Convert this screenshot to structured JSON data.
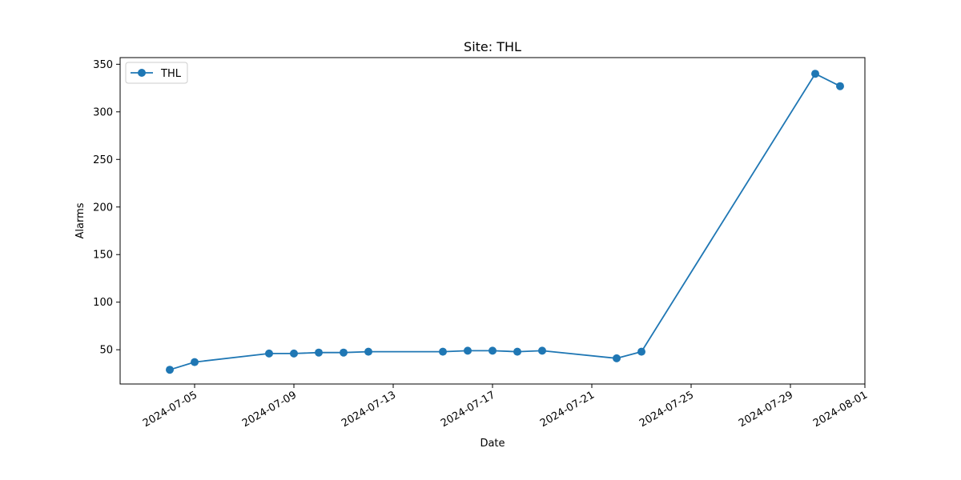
{
  "chart_data": {
    "type": "line",
    "title": "Site: THL",
    "xlabel": "Date",
    "ylabel": "Alarms",
    "x_tick_labels": [
      "2024-07-05",
      "2024-07-09",
      "2024-07-13",
      "2024-07-17",
      "2024-07-21",
      "2024-07-25",
      "2024-07-29",
      "2024-08-01"
    ],
    "y_tick_labels": [
      "50",
      "100",
      "150",
      "200",
      "250",
      "300",
      "350"
    ],
    "ylim": [
      14,
      357
    ],
    "xlim": [
      "2024-07-02",
      "2024-08-01"
    ],
    "grid": false,
    "legend_position": "top-left",
    "series": [
      {
        "name": "THL",
        "color": "#1f77b4",
        "marker": "circle",
        "x": [
          "2024-07-04",
          "2024-07-05",
          "2024-07-08",
          "2024-07-09",
          "2024-07-10",
          "2024-07-11",
          "2024-07-12",
          "2024-07-15",
          "2024-07-16",
          "2024-07-17",
          "2024-07-18",
          "2024-07-19",
          "2024-07-22",
          "2024-07-23",
          "2024-07-30",
          "2024-07-31"
        ],
        "y": [
          29,
          37,
          46,
          46,
          47,
          47,
          48,
          48,
          49,
          49,
          48,
          49,
          41,
          48,
          340,
          327
        ]
      }
    ]
  }
}
